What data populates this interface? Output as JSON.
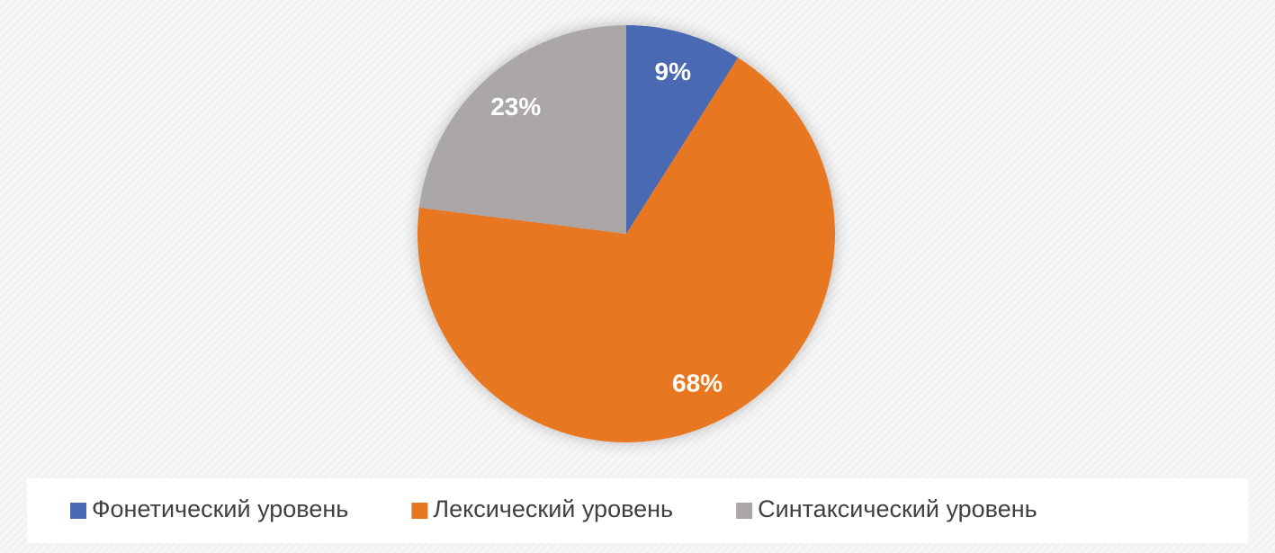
{
  "chart_data": {
    "type": "pie",
    "categories": [
      "Фонетический уровень",
      "Лексический уровень",
      "Синтаксический уровень"
    ],
    "values": [
      9,
      68,
      23
    ],
    "value_labels": [
      "9%",
      "68%",
      "23%"
    ],
    "colors": [
      "#4a6ab3",
      "#e87722",
      "#aca7a7"
    ],
    "legend": "bottom"
  }
}
